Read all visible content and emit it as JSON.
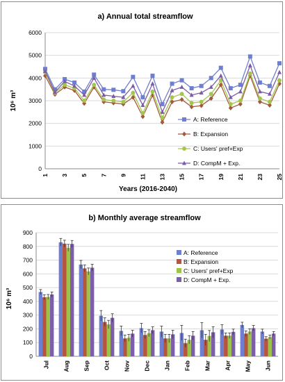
{
  "chart_data": [
    {
      "type": "line",
      "title": "a) Annual total streamflow",
      "xlabel": "Years (2016-2040)",
      "ylabel": "10⁶ m³",
      "ylim": [
        0,
        6000
      ],
      "yticks": [
        0,
        1000,
        2000,
        3000,
        4000,
        5000,
        6000
      ],
      "x": [
        1,
        2,
        3,
        4,
        5,
        6,
        7,
        8,
        9,
        10,
        11,
        12,
        13,
        14,
        15,
        16,
        17,
        18,
        19,
        20,
        21,
        22,
        23,
        24,
        25
      ],
      "xtick_labels": [
        "1",
        "3",
        "5",
        "7",
        "9",
        "11",
        "13",
        "15",
        "17",
        "19",
        "21",
        "23",
        "25"
      ],
      "legend_position": "right",
      "series": [
        {
          "name": "A: Reference",
          "color": "#6f7fd0",
          "marker": "square",
          "values": [
            4400,
            3500,
            3950,
            3800,
            3400,
            4150,
            3500,
            3480,
            3420,
            4050,
            3150,
            4100,
            2850,
            3750,
            3900,
            3550,
            3650,
            4000,
            4450,
            3550,
            3700,
            4950,
            3800,
            3650,
            4650
          ]
        },
        {
          "name": "B: Expansion",
          "color": "#a15a3a",
          "marker": "diamond",
          "values": [
            4100,
            3280,
            3600,
            3450,
            2880,
            3600,
            2950,
            2900,
            2850,
            3150,
            2300,
            3250,
            2050,
            2950,
            3050,
            2730,
            2780,
            3100,
            3700,
            2680,
            2850,
            4100,
            2950,
            2800,
            3750
          ]
        },
        {
          "name": "C: Users' pref+Exp",
          "color": "#a4c64c",
          "marker": "circle",
          "values": [
            4250,
            3350,
            3700,
            3550,
            3000,
            3700,
            3050,
            3000,
            2950,
            3350,
            2450,
            3400,
            2250,
            3150,
            3300,
            2900,
            2950,
            3300,
            3900,
            2850,
            3000,
            4200,
            3100,
            2950,
            3900
          ]
        },
        {
          "name": "D: CompM + Exp.",
          "color": "#7a5ba8",
          "marker": "triangle",
          "values": [
            4300,
            3380,
            3850,
            3650,
            3250,
            4000,
            3250,
            3200,
            3150,
            3650,
            2800,
            3750,
            2500,
            3450,
            3600,
            3250,
            3350,
            3600,
            4100,
            3150,
            3400,
            4550,
            3400,
            3300,
            4250
          ]
        }
      ]
    },
    {
      "type": "bar",
      "title": "b) Monthly average streamflow",
      "xlabel": "",
      "ylabel": "10⁶ m³",
      "ylim": [
        0,
        900
      ],
      "yticks": [
        0,
        100,
        200,
        300,
        400,
        500,
        600,
        700,
        800,
        900
      ],
      "categories": [
        "Jul",
        "Aug",
        "Sep",
        "Oct",
        "Nov",
        "Dec",
        "Jan",
        "Feb",
        "Mar",
        "Apr",
        "May",
        "Jun"
      ],
      "legend_position": "right",
      "error_bars": true,
      "series": [
        {
          "name": "A: Reference",
          "color": "#6f7fd0",
          "values": [
            468,
            830,
            668,
            295,
            185,
            205,
            180,
            170,
            190,
            195,
            228,
            180
          ],
          "errors": [
            18,
            28,
            30,
            38,
            35,
            35,
            40,
            55,
            55,
            35,
            20,
            18
          ]
        },
        {
          "name": "B: Expansion",
          "color": "#b5543f",
          "values": [
            430,
            820,
            640,
            250,
            130,
            155,
            130,
            95,
            120,
            150,
            165,
            128
          ],
          "errors": [
            18,
            25,
            25,
            30,
            25,
            25,
            30,
            30,
            40,
            20,
            20,
            15
          ]
        },
        {
          "name": "C: Users' pref+Exp",
          "color": "#9cc24a",
          "values": [
            432,
            790,
            618,
            232,
            135,
            168,
            130,
            120,
            148,
            150,
            180,
            140
          ],
          "errors": [
            18,
            25,
            25,
            30,
            25,
            25,
            30,
            30,
            40,
            20,
            20,
            15
          ]
        },
        {
          "name": "D: CompM + Exp.",
          "color": "#7d5ea8",
          "values": [
            450,
            818,
            645,
            280,
            165,
            190,
            160,
            150,
            175,
            178,
            205,
            165
          ],
          "errors": [
            18,
            25,
            25,
            30,
            25,
            25,
            30,
            30,
            40,
            20,
            20,
            15
          ]
        }
      ]
    }
  ]
}
